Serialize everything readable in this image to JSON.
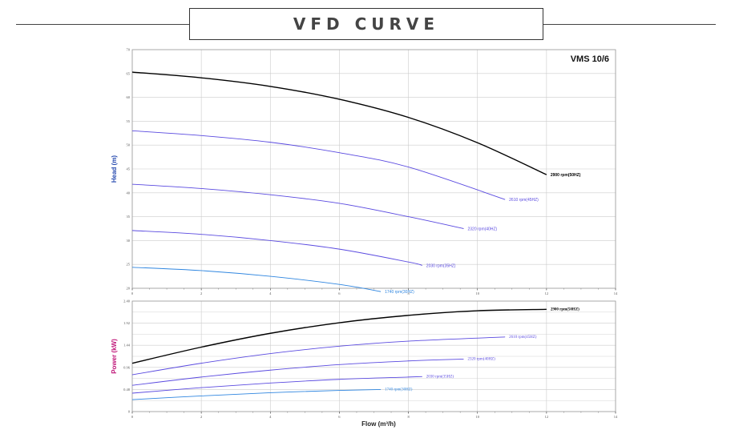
{
  "header": {
    "title": "VFD CURVE"
  },
  "colors": {
    "s50": "#000000",
    "s45": "#5a4ae0",
    "s40": "#5a4ae0",
    "s35": "#5a4ae0",
    "s30": "#2f86e0",
    "axis": "#333333",
    "grid": "#cccccc"
  },
  "chart_data": [
    {
      "type": "line",
      "title": "VMS 10/6",
      "xlabel": "",
      "ylabel": "Head (m)",
      "xlim": [
        0,
        14
      ],
      "ylim": [
        20,
        70
      ],
      "xticks": [
        "0",
        "2",
        "4",
        "6",
        "8",
        "10",
        "12",
        "14"
      ],
      "yticks": [
        "20",
        "25",
        "30",
        "35",
        "40",
        "45",
        "50",
        "55",
        "60",
        "65",
        "70"
      ],
      "grid": true,
      "series": [
        {
          "name": "2900 rpm(50HZ)",
          "color_key": "s50",
          "x": [
            0,
            2,
            4,
            6,
            8,
            10,
            12
          ],
          "y": [
            65.3,
            64.1,
            62.3,
            59.6,
            55.8,
            50.5,
            43.8
          ]
        },
        {
          "name": "2610 rpm(45HZ)",
          "color_key": "s45",
          "x": [
            0,
            2,
            4,
            6,
            8,
            10.8
          ],
          "y": [
            53.0,
            52.0,
            50.6,
            48.4,
            45.4,
            38.6
          ]
        },
        {
          "name": "2320 rpm(40HZ)",
          "color_key": "s40",
          "x": [
            0,
            2,
            4,
            6,
            8,
            9.6
          ],
          "y": [
            41.8,
            40.9,
            39.6,
            37.8,
            35.0,
            32.5
          ]
        },
        {
          "name": "2030 rpm(35HZ)",
          "color_key": "s35",
          "x": [
            0,
            2,
            4,
            6,
            8,
            8.4
          ],
          "y": [
            32.1,
            31.3,
            30.0,
            28.2,
            25.5,
            24.8
          ]
        },
        {
          "name": "1740 rpm(30HZ)",
          "color_key": "s30",
          "x": [
            0,
            2,
            4,
            6,
            7.2
          ],
          "y": [
            24.4,
            23.7,
            22.5,
            20.8,
            19.3
          ]
        }
      ]
    },
    {
      "type": "line",
      "title": "",
      "xlabel": "Flow (m³/h)",
      "ylabel": "Power (kW)",
      "xlim": [
        0,
        14
      ],
      "ylim": [
        0,
        2.4
      ],
      "xticks": [
        "0",
        "2",
        "4",
        "6",
        "8",
        "10",
        "12",
        "14"
      ],
      "yticks": [
        "0",
        "0.48",
        "0.96",
        "1.44",
        "1.92",
        "2.40"
      ],
      "yticks_shown": [
        "2.40",
        "1.92",
        "1.44",
        "0.96",
        "0.48",
        "0"
      ],
      "grid": true,
      "series": [
        {
          "name": "2900 rpm(50HZ)",
          "color_key": "s50",
          "x": [
            0,
            2,
            4,
            6,
            8,
            10,
            12
          ],
          "y": [
            1.05,
            1.4,
            1.7,
            1.93,
            2.09,
            2.19,
            2.22
          ]
        },
        {
          "name": "2610 rpm(45HZ)",
          "color_key": "s45",
          "x": [
            0,
            2,
            4,
            6,
            8,
            10.8
          ],
          "y": [
            0.8,
            1.05,
            1.26,
            1.42,
            1.53,
            1.62
          ]
        },
        {
          "name": "2320 rpm(40HZ)",
          "color_key": "s40",
          "x": [
            0,
            2,
            4,
            6,
            8,
            9.6
          ],
          "y": [
            0.57,
            0.75,
            0.9,
            1.02,
            1.1,
            1.14
          ]
        },
        {
          "name": "2030 rpm(35HZ)",
          "color_key": "s35",
          "x": [
            0,
            2,
            4,
            6,
            8,
            8.4
          ],
          "y": [
            0.4,
            0.52,
            0.62,
            0.7,
            0.75,
            0.76
          ]
        },
        {
          "name": "1740 rpm(30HZ)",
          "color_key": "s30",
          "x": [
            0,
            2,
            4,
            6,
            7.2
          ],
          "y": [
            0.26,
            0.34,
            0.41,
            0.46,
            0.48
          ]
        }
      ]
    }
  ]
}
